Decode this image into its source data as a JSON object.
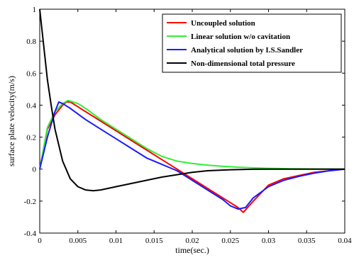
{
  "chart_data": {
    "type": "line",
    "xlabel": "time(sec.)",
    "ylabel": "surface plate velocity(m/s)",
    "xlim": [
      0,
      0.04
    ],
    "ylim": [
      -0.4,
      1
    ],
    "x_ticks": [
      0,
      0.005,
      0.01,
      0.015,
      0.02,
      0.025,
      0.03,
      0.035,
      0.04
    ],
    "x_tick_labels": [
      "0",
      "0.005",
      "0.01",
      "0.015",
      "0.02",
      "0.025",
      "0.03",
      "0.035",
      "0.04"
    ],
    "y_ticks": [
      -0.4,
      -0.2,
      0,
      0.2,
      0.4,
      0.6,
      0.8,
      1
    ],
    "y_tick_labels": [
      "-0.4",
      "-0.2",
      "0",
      "0.2",
      "0.4",
      "0.6",
      "0.8",
      "1"
    ],
    "grid": true,
    "legend_position": "top-right",
    "series": [
      {
        "name": "Uncoupled solution",
        "color": "#ff0000",
        "x": [
          0,
          0.001,
          0.002,
          0.003,
          0.0035,
          0.004,
          0.005,
          0.006,
          0.008,
          0.01,
          0.012,
          0.014,
          0.016,
          0.018,
          0.02,
          0.022,
          0.024,
          0.026,
          0.0267,
          0.028,
          0.03,
          0.032,
          0.034,
          0.036,
          0.038,
          0.04
        ],
        "y": [
          0,
          0.25,
          0.34,
          0.4,
          0.42,
          0.42,
          0.39,
          0.36,
          0.3,
          0.24,
          0.18,
          0.12,
          0.06,
          0.0,
          -0.06,
          -0.12,
          -0.18,
          -0.24,
          -0.27,
          -0.2,
          -0.1,
          -0.06,
          -0.04,
          -0.02,
          -0.01,
          0
        ]
      },
      {
        "name": "Linear solution w/o cavitation",
        "color": "#33ee33",
        "x": [
          0,
          0.001,
          0.002,
          0.003,
          0.0037,
          0.005,
          0.006,
          0.008,
          0.01,
          0.012,
          0.014,
          0.016,
          0.018,
          0.02,
          0.022,
          0.024,
          0.026,
          0.028,
          0.03,
          0.033,
          0.036,
          0.04
        ],
        "y": [
          0,
          0.26,
          0.36,
          0.41,
          0.43,
          0.41,
          0.38,
          0.31,
          0.25,
          0.19,
          0.13,
          0.08,
          0.05,
          0.035,
          0.025,
          0.018,
          0.012,
          0.008,
          0.005,
          0.002,
          0.001,
          0
        ]
      },
      {
        "name": "Analytical solution by I.S.Sandler",
        "color": "#1a1aff",
        "x": [
          0,
          0.001,
          0.002,
          0.0025,
          0.003,
          0.004,
          0.006,
          0.008,
          0.01,
          0.012,
          0.014,
          0.016,
          0.018,
          0.02,
          0.022,
          0.024,
          0.025,
          0.026,
          0.027,
          0.028,
          0.03,
          0.032,
          0.034,
          0.036,
          0.038,
          0.04
        ],
        "y": [
          0,
          0.2,
          0.36,
          0.42,
          0.41,
          0.38,
          0.31,
          0.25,
          0.19,
          0.13,
          0.07,
          0.03,
          -0.01,
          -0.07,
          -0.13,
          -0.19,
          -0.23,
          -0.25,
          -0.24,
          -0.18,
          -0.11,
          -0.07,
          -0.045,
          -0.025,
          -0.01,
          0
        ]
      },
      {
        "name": "Non-dimensional total pressure",
        "color": "#000000",
        "x": [
          0,
          0.0005,
          0.001,
          0.0015,
          0.002,
          0.003,
          0.004,
          0.005,
          0.006,
          0.007,
          0.008,
          0.01,
          0.012,
          0.014,
          0.016,
          0.018,
          0.02,
          0.022,
          0.025,
          0.028,
          0.03,
          0.035,
          0.04
        ],
        "y": [
          1,
          0.78,
          0.56,
          0.4,
          0.25,
          0.05,
          -0.06,
          -0.11,
          -0.13,
          -0.135,
          -0.13,
          -0.11,
          -0.09,
          -0.07,
          -0.05,
          -0.035,
          -0.02,
          -0.01,
          -0.004,
          -0.001,
          0,
          0,
          0
        ]
      }
    ]
  }
}
